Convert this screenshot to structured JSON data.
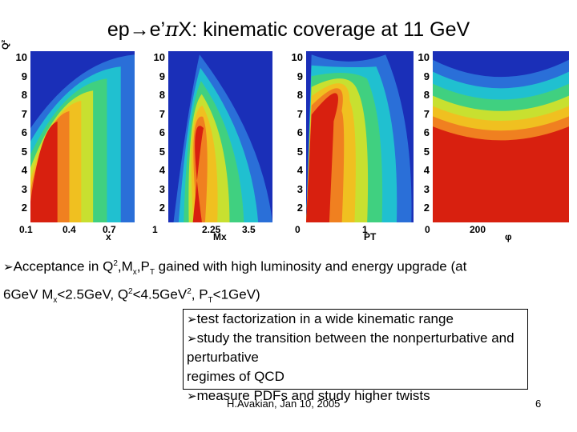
{
  "title": {
    "prefix": "ep→e’",
    "pi": "π",
    "rest": "X:  kinematic coverage at 11 GeV"
  },
  "y_axis": {
    "label": "Q²",
    "ticks": [
      "10",
      "9",
      "8",
      "7",
      "6",
      "5",
      "4",
      "3",
      "2"
    ]
  },
  "panels": [
    {
      "name": "x",
      "xlabel": "x",
      "xticks": [
        "0.1",
        "0.4",
        "0.7"
      ],
      "colormap": "blue-to-red contour"
    },
    {
      "name": "mx",
      "xlabel": "Mx",
      "xticks": [
        "1",
        "2.25",
        "3.5"
      ],
      "colormap": "blue-to-red contour"
    },
    {
      "name": "pt",
      "xlabel": "PT",
      "xticks": [
        "0",
        "1"
      ],
      "colormap": "blue-to-red contour"
    },
    {
      "name": "phi",
      "xlabel": "φ",
      "xticks": [
        "0",
        "200"
      ],
      "colormap": "blue-to-red contour"
    }
  ],
  "bullet": {
    "l1_a": "Acceptance in Q",
    "l1_sup": "2",
    "l1_b": ",M",
    "l1_sub": "x",
    "l1_c": ",P",
    "l1_sub2": "T",
    "l1_d": " gained with high luminosity and energy upgrade (at",
    "l2_a": "6GeV M",
    "l2_sub": "x",
    "l2_b": "<2.5GeV, Q",
    "l2_sup": "2",
    "l2_c": "<4.5GeV",
    "l2_sup2": "2",
    "l2_d": ", P",
    "l2_sub2": "T",
    "l2_e": "<1GeV)"
  },
  "box_items": [
    "test factorization in a wide kinematic range",
    "study the transition between the  nonperturbative and perturbative",
    "regimes of QCD",
    "measure PDFs and study higher twists"
  ],
  "footer": "H.Avakian, Jan 10, 2005",
  "page_number": "6",
  "colors": {
    "plot_bg": "#1a2fb8",
    "hot": "#d8200f",
    "mid": "#f0e020",
    "cool": "#20c0d0"
  }
}
